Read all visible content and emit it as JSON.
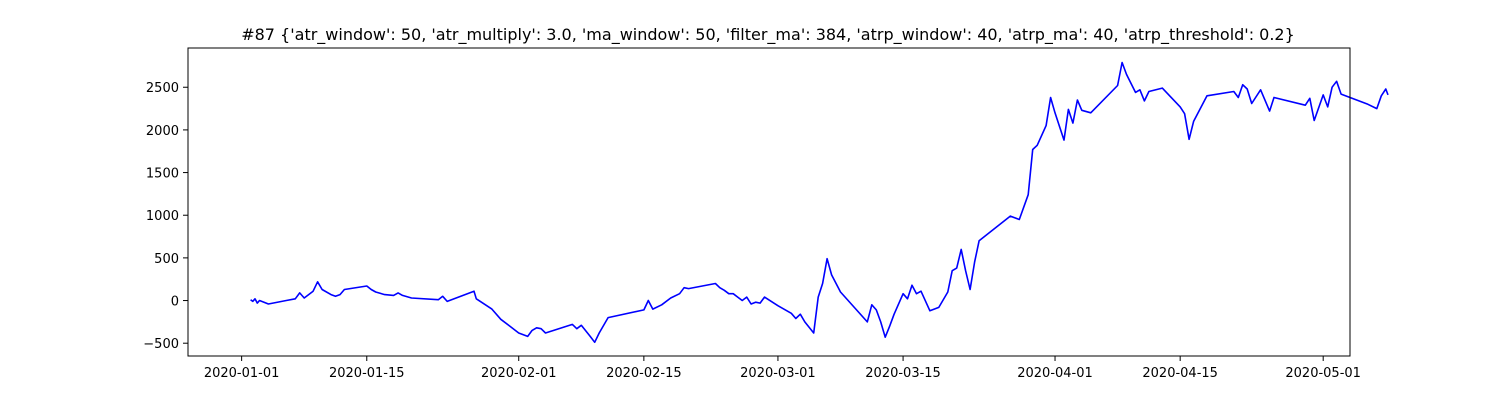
{
  "chart_data": {
    "type": "line",
    "title": "#87 {'atr_window': 50, 'atr_multiply': 3.0, 'ma_window': 50, 'filter_ma': 384, 'atrp_window': 40, 'atrp_ma': 40, 'atrp_threshold': 0.2}",
    "xlabel": "",
    "ylabel": "",
    "xlim": [
      "2019-12-26",
      "2020-05-04"
    ],
    "ylim": [
      -650,
      2960
    ],
    "x_ticks": [
      "2020-01-01",
      "2020-01-15",
      "2020-02-01",
      "2020-02-15",
      "2020-03-01",
      "2020-03-15",
      "2020-04-01",
      "2020-04-15",
      "2020-05-01"
    ],
    "y_ticks": [
      -500,
      0,
      500,
      1000,
      1500,
      2000,
      2500
    ],
    "grid": false,
    "legend": "none",
    "series": [
      {
        "color": "#0000ff",
        "points": [
          [
            "2020-01-02",
            10
          ],
          [
            "2020-01-02T06",
            -10
          ],
          [
            "2020-01-02T12",
            20
          ],
          [
            "2020-01-02T18",
            -30
          ],
          [
            "2020-01-03",
            0
          ],
          [
            "2020-01-03T12",
            -20
          ],
          [
            "2020-01-04",
            -40
          ],
          [
            "2020-01-06",
            0
          ],
          [
            "2020-01-07",
            20
          ],
          [
            "2020-01-07T12",
            90
          ],
          [
            "2020-01-08",
            30
          ],
          [
            "2020-01-09",
            110
          ],
          [
            "2020-01-09T12",
            220
          ],
          [
            "2020-01-10",
            130
          ],
          [
            "2020-01-11",
            70
          ],
          [
            "2020-01-11T12",
            50
          ],
          [
            "2020-01-12",
            70
          ],
          [
            "2020-01-12T12",
            130
          ],
          [
            "2020-01-15",
            170
          ],
          [
            "2020-01-15T12",
            130
          ],
          [
            "2020-01-16",
            100
          ],
          [
            "2020-01-17",
            70
          ],
          [
            "2020-01-18",
            60
          ],
          [
            "2020-01-18T12",
            90
          ],
          [
            "2020-01-19",
            60
          ],
          [
            "2020-01-20",
            30
          ],
          [
            "2020-01-23",
            10
          ],
          [
            "2020-01-23T12",
            50
          ],
          [
            "2020-01-24",
            -10
          ],
          [
            "2020-01-27",
            110
          ],
          [
            "2020-01-27T06",
            20
          ],
          [
            "2020-01-29",
            -100
          ],
          [
            "2020-01-30",
            -220
          ],
          [
            "2020-01-31",
            -300
          ],
          [
            "2020-02-01",
            -380
          ],
          [
            "2020-02-02",
            -420
          ],
          [
            "2020-02-02T12",
            -350
          ],
          [
            "2020-02-03",
            -320
          ],
          [
            "2020-02-03T12",
            -330
          ],
          [
            "2020-02-04",
            -380
          ],
          [
            "2020-02-07",
            -280
          ],
          [
            "2020-02-07T12",
            -330
          ],
          [
            "2020-02-08",
            -290
          ],
          [
            "2020-02-09",
            -420
          ],
          [
            "2020-02-09T12",
            -490
          ],
          [
            "2020-02-10",
            -380
          ],
          [
            "2020-02-11",
            -200
          ],
          [
            "2020-02-15",
            -110
          ],
          [
            "2020-02-15T12",
            0
          ],
          [
            "2020-02-16",
            -100
          ],
          [
            "2020-02-17",
            -50
          ],
          [
            "2020-02-18",
            30
          ],
          [
            "2020-02-19",
            80
          ],
          [
            "2020-02-19T12",
            150
          ],
          [
            "2020-02-20",
            140
          ],
          [
            "2020-02-23",
            200
          ],
          [
            "2020-02-23T12",
            150
          ],
          [
            "2020-02-24",
            120
          ],
          [
            "2020-02-24T12",
            80
          ],
          [
            "2020-02-25",
            80
          ],
          [
            "2020-02-25T12",
            40
          ],
          [
            "2020-02-26",
            0
          ],
          [
            "2020-02-26T12",
            40
          ],
          [
            "2020-02-27",
            -40
          ],
          [
            "2020-02-27T12",
            -20
          ],
          [
            "2020-02-28",
            -30
          ],
          [
            "2020-02-28T12",
            40
          ],
          [
            "2020-03-01",
            -60
          ],
          [
            "2020-03-02",
            -120
          ],
          [
            "2020-03-02T12",
            -150
          ],
          [
            "2020-03-03",
            -210
          ],
          [
            "2020-03-03T12",
            -160
          ],
          [
            "2020-03-04",
            -250
          ],
          [
            "2020-03-05",
            -380
          ],
          [
            "2020-03-05T12",
            40
          ],
          [
            "2020-03-06",
            200
          ],
          [
            "2020-03-06T12",
            490
          ],
          [
            "2020-03-07",
            300
          ],
          [
            "2020-03-08",
            100
          ],
          [
            "2020-03-11",
            -250
          ],
          [
            "2020-03-11T12",
            -50
          ],
          [
            "2020-03-12",
            -110
          ],
          [
            "2020-03-12T12",
            -250
          ],
          [
            "2020-03-13",
            -430
          ],
          [
            "2020-03-13T12",
            -300
          ],
          [
            "2020-03-14",
            -160
          ],
          [
            "2020-03-15",
            80
          ],
          [
            "2020-03-15T12",
            20
          ],
          [
            "2020-03-16",
            180
          ],
          [
            "2020-03-16T12",
            80
          ],
          [
            "2020-03-17",
            110
          ],
          [
            "2020-03-18",
            -120
          ],
          [
            "2020-03-19",
            -80
          ],
          [
            "2020-03-20",
            100
          ],
          [
            "2020-03-20T12",
            350
          ],
          [
            "2020-03-21",
            380
          ],
          [
            "2020-03-21T12",
            600
          ],
          [
            "2020-03-22",
            350
          ],
          [
            "2020-03-22T12",
            130
          ],
          [
            "2020-03-23",
            450
          ],
          [
            "2020-03-23T12",
            700
          ],
          [
            "2020-03-27",
            990
          ],
          [
            "2020-03-28",
            950
          ],
          [
            "2020-03-29",
            1240
          ],
          [
            "2020-03-29T12",
            1770
          ],
          [
            "2020-03-30",
            1820
          ],
          [
            "2020-03-31",
            2050
          ],
          [
            "2020-03-31T12",
            2380
          ],
          [
            "2020-04-01",
            2200
          ],
          [
            "2020-04-02",
            1880
          ],
          [
            "2020-04-02T12",
            2240
          ],
          [
            "2020-04-03",
            2080
          ],
          [
            "2020-04-03T12",
            2350
          ],
          [
            "2020-04-04",
            2230
          ],
          [
            "2020-04-05",
            2200
          ],
          [
            "2020-04-08",
            2520
          ],
          [
            "2020-04-08T12",
            2790
          ],
          [
            "2020-04-09",
            2650
          ],
          [
            "2020-04-10",
            2440
          ],
          [
            "2020-04-10T12",
            2470
          ],
          [
            "2020-04-11",
            2340
          ],
          [
            "2020-04-11T12",
            2450
          ],
          [
            "2020-04-13",
            2490
          ],
          [
            "2020-04-15",
            2270
          ],
          [
            "2020-04-15T12",
            2190
          ],
          [
            "2020-04-16",
            1890
          ],
          [
            "2020-04-16T12",
            2100
          ],
          [
            "2020-04-18",
            2400
          ],
          [
            "2020-04-21",
            2450
          ],
          [
            "2020-04-21T12",
            2380
          ],
          [
            "2020-04-22",
            2530
          ],
          [
            "2020-04-22T12",
            2480
          ],
          [
            "2020-04-23",
            2310
          ],
          [
            "2020-04-24",
            2470
          ],
          [
            "2020-04-25",
            2220
          ],
          [
            "2020-04-25T12",
            2380
          ],
          [
            "2020-04-29",
            2290
          ],
          [
            "2020-04-29T12",
            2370
          ],
          [
            "2020-04-30",
            2110
          ],
          [
            "2020-05-01",
            2410
          ],
          [
            "2020-05-01T12",
            2270
          ],
          [
            "2020-05-02",
            2500
          ],
          [
            "2020-05-02T12",
            2570
          ],
          [
            "2020-05-03",
            2420
          ],
          [
            "2020-05-06",
            2300
          ],
          [
            "2020-05-07",
            2250
          ],
          [
            "2020-05-07T12",
            2400
          ],
          [
            "2020-05-08",
            2480
          ],
          [
            "2020-05-08T06",
            2410
          ]
        ]
      }
    ]
  }
}
